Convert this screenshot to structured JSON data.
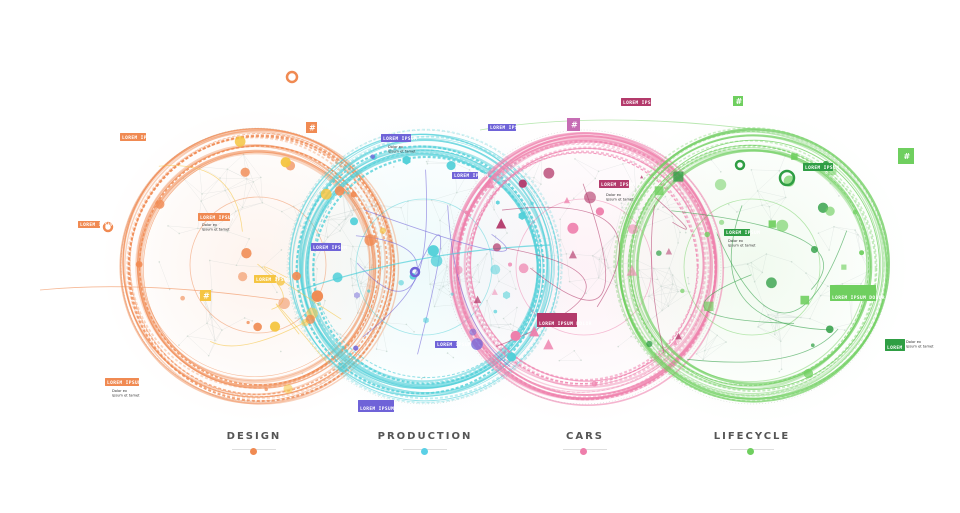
{
  "sections": [
    {
      "key": "design",
      "label": "DESIGN",
      "color": "#f08a52",
      "accent": "#f5c542",
      "dot": "#f08a52"
    },
    {
      "key": "production",
      "label": "PRODUCTION",
      "color": "#4fcfd8",
      "accent": "#6f63d8",
      "dot": "#5ad0e6"
    },
    {
      "key": "cars",
      "label": "CARS",
      "color": "#ee7eab",
      "accent": "#b33a6b",
      "dot": "#ee7eab"
    },
    {
      "key": "lifecycle",
      "label": "LIFECYCLE",
      "color": "#6fcf5f",
      "accent": "#2f9e44",
      "dot": "#6fcf5f"
    }
  ],
  "tags": {
    "lorem_ipsum": "LOREM IPSUM",
    "lorem_ipsum_dolor": "LOREM IPSUM DOLOR",
    "note_line1": "Dolor ex",
    "note_line2": "ipsum et tamet",
    "hash": "#"
  }
}
